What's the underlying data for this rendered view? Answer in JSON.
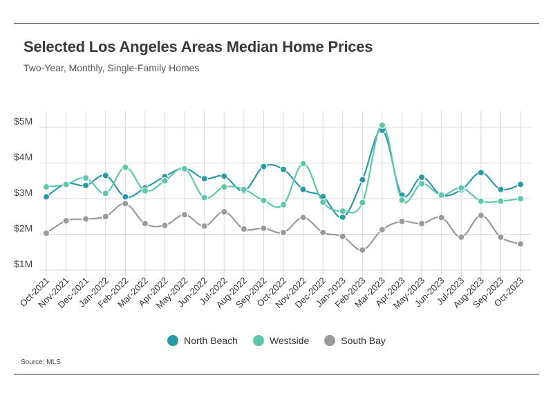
{
  "title": "Selected Los Angeles Areas Median Home Prices",
  "subtitle": "Two-Year, Monthly, Single-Family Homes",
  "source": "Source: MLS",
  "colors": {
    "north_beach": "#2a9aa6",
    "westside": "#5cc7ad",
    "south_bay": "#9a9a9a",
    "grid": "#d9d9d9"
  },
  "chart_data": {
    "type": "line",
    "title": "Selected Los Angeles Areas Median Home Prices",
    "subtitle": "Two-Year, Monthly, Single-Family Homes",
    "xlabel": "",
    "ylabel": "",
    "ylim": [
      1,
      5.3
    ],
    "yticks": [
      1,
      2,
      3,
      4,
      5
    ],
    "ytick_labels": [
      "$1M",
      "$2M",
      "$3M",
      "$4M",
      "$5M"
    ],
    "grid": true,
    "legend_position": "bottom",
    "categories": [
      "Oct-2021",
      "Nov-2021",
      "Dec-2021",
      "Jan-2022",
      "Feb-2022",
      "Mar-2022",
      "Apr-2022",
      "May-2022",
      "Jun-2022",
      "Jul-2022",
      "Aug-2022",
      "Sep-2022",
      "Oct-2022",
      "Nov-2022",
      "Dec-2022",
      "Jan-2023",
      "Feb-2023",
      "Mar-2023",
      "Apr-2023",
      "May-2023",
      "Jun-2023",
      "Jul-2023",
      "Aug-2023",
      "Sep-2023",
      "Oct-2023"
    ],
    "series": [
      {
        "name": "North Beach",
        "color": "#2a9aa6",
        "values": [
          3.05,
          3.42,
          3.37,
          3.65,
          3.05,
          3.3,
          3.62,
          3.85,
          3.56,
          3.63,
          3.22,
          3.9,
          3.82,
          3.26,
          3.06,
          2.48,
          3.53,
          4.92,
          3.1,
          3.6,
          3.1,
          3.25,
          3.73,
          3.26,
          3.4
        ]
      },
      {
        "name": "Westside",
        "color": "#5cc7ad",
        "values": [
          3.33,
          3.4,
          3.58,
          3.15,
          3.88,
          3.22,
          3.5,
          3.84,
          3.03,
          3.33,
          3.26,
          2.95,
          2.83,
          3.98,
          2.9,
          2.65,
          2.89,
          5.06,
          2.96,
          3.42,
          3.1,
          3.3,
          2.93,
          2.93,
          3.0
        ]
      },
      {
        "name": "South Bay",
        "color": "#9a9a9a",
        "values": [
          2.03,
          2.38,
          2.43,
          2.5,
          2.86,
          2.3,
          2.25,
          2.55,
          2.23,
          2.63,
          2.15,
          2.17,
          2.05,
          2.47,
          2.05,
          1.94,
          1.56,
          2.13,
          2.36,
          2.3,
          2.47,
          1.92,
          2.53,
          1.92,
          1.73
        ]
      }
    ]
  }
}
